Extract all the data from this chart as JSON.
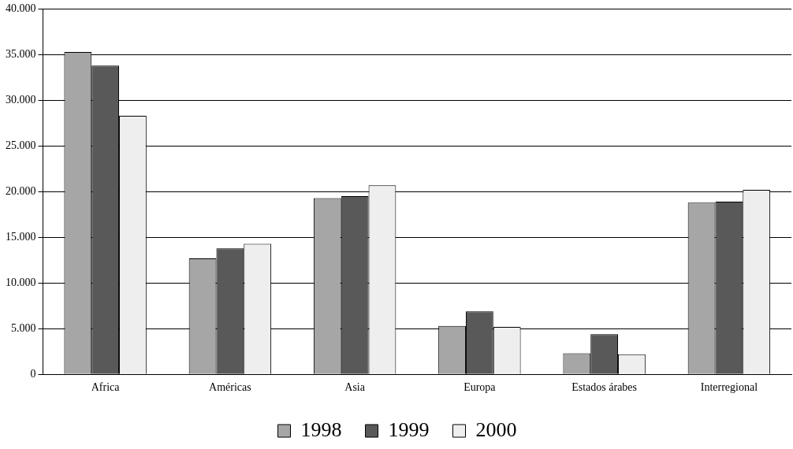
{
  "chart_data": {
    "type": "bar",
    "categories": [
      "Africa",
      "Américas",
      "Asia",
      "Europa",
      "Estados árabes",
      "Interregional"
    ],
    "series": [
      {
        "name": "1998",
        "color": "#a6a6a6",
        "values": [
          35300,
          12700,
          19300,
          5300,
          2300,
          18800
        ]
      },
      {
        "name": "1999",
        "color": "#595959",
        "values": [
          33800,
          13800,
          19500,
          6900,
          4400,
          18900
        ]
      },
      {
        "name": "2000",
        "color": "#eeeeee",
        "values": [
          28300,
          14300,
          20700,
          5200,
          2200,
          20200
        ]
      }
    ],
    "ylim": [
      0,
      40000
    ],
    "yticks": [
      {
        "value": 0,
        "label": "0"
      },
      {
        "value": 5000,
        "label": "5.000"
      },
      {
        "value": 10000,
        "label": "10.000"
      },
      {
        "value": 15000,
        "label": "15.000"
      },
      {
        "value": 20000,
        "label": "20.000"
      },
      {
        "value": 25000,
        "label": "25.000"
      },
      {
        "value": 30000,
        "label": "30.000"
      },
      {
        "value": 35000,
        "label": "35.000"
      },
      {
        "value": 40000,
        "label": "40.000"
      }
    ],
    "grid": "y",
    "legend": "bottom"
  }
}
